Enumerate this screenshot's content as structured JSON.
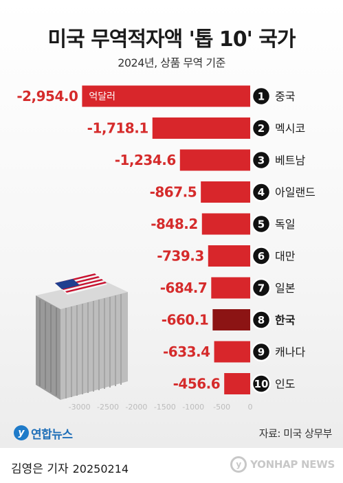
{
  "header": {
    "title": "미국 무역적자액 '톱 10' 국가",
    "subtitle": "2024년, 상품 무역 기준"
  },
  "chart_data": {
    "type": "bar",
    "orientation": "horizontal",
    "title": "미국 무역적자액 '톱 10' 국가",
    "subtitle": "2024년, 상품 무역 기준",
    "unit": "억달러",
    "categories": [
      "중국",
      "멕시코",
      "베트남",
      "아일랜드",
      "독일",
      "대만",
      "일본",
      "한국",
      "캐나다",
      "인도"
    ],
    "ranks": [
      "1",
      "2",
      "3",
      "4",
      "5",
      "6",
      "7",
      "8",
      "9",
      "10"
    ],
    "values": [
      -2954.0,
      -1718.1,
      -1234.6,
      -867.5,
      -848.2,
      -739.3,
      -684.7,
      -660.1,
      -633.4,
      -456.6
    ],
    "value_labels": [
      "-2,954.0",
      "-1,718.1",
      "-1,234.6",
      "-867.5",
      "-848.2",
      "-739.3",
      "-684.7",
      "-660.1",
      "-633.4",
      "-456.6"
    ],
    "highlight_category": "한국",
    "xlim": [
      -3000,
      0
    ],
    "xticks": [
      -3000,
      -2500,
      -2000,
      -1500,
      -1000,
      -500,
      0
    ],
    "xtick_labels": [
      "-3000",
      "-2500",
      "-2000",
      "-1500",
      "-1000",
      "-500",
      "0"
    ],
    "colors": {
      "bar": "#d8262b",
      "highlight": "#8c1414",
      "label": "#d52b2b"
    },
    "grid": false,
    "legend": "none"
  },
  "illustration": {
    "icon": "shipping-container-us-flag-icon"
  },
  "branding": {
    "logo_text": "연합뉴스",
    "logo_icon": "yonhap-logo-icon",
    "source": "자료: 미국 상무부",
    "reporter": "김영은 기자",
    "date": "20250214",
    "watermark": "YONHAP NEWS"
  }
}
